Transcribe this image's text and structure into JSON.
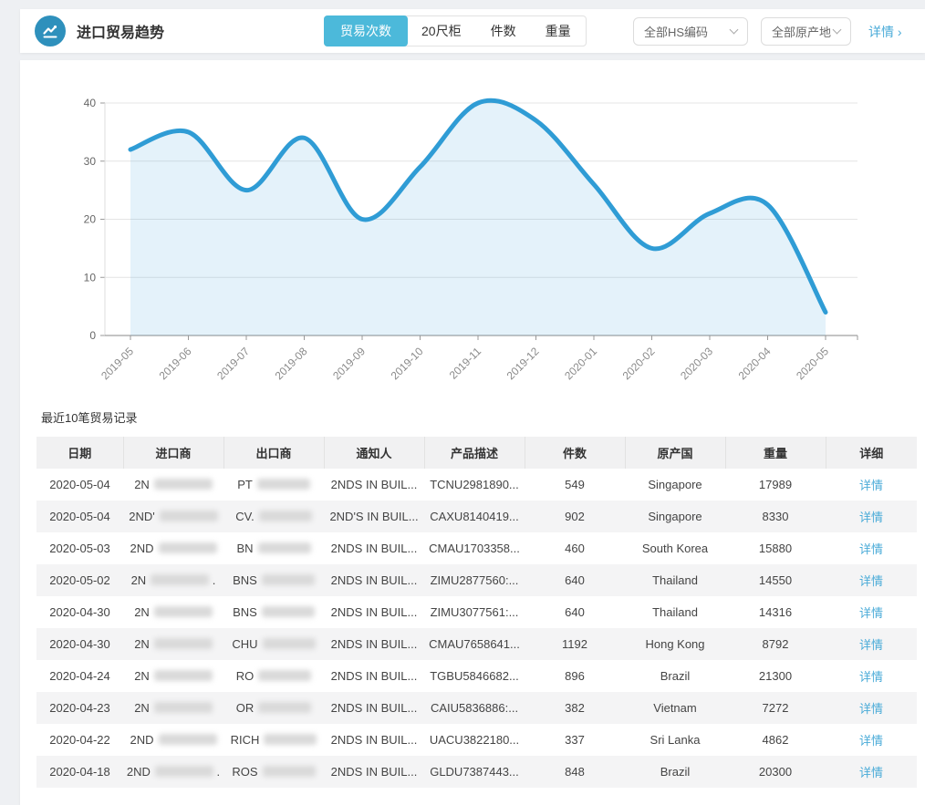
{
  "colors": {
    "accent": "#45b0d9",
    "tab_active_bg": "#4cb9da",
    "chart_line": "#2f9cd5",
    "chart_area": "rgba(47,156,213,0.13)",
    "icon_bg": "#2e90bc",
    "link": "#4aabd8"
  },
  "header": {
    "title": "进口贸易趋势",
    "tabs": [
      {
        "label": "贸易次数",
        "active": true
      },
      {
        "label": "20尺柜",
        "active": false
      },
      {
        "label": "件数",
        "active": false
      },
      {
        "label": "重量",
        "active": false
      }
    ],
    "filters": [
      {
        "label": "全部HS编码"
      },
      {
        "label": "全部原产地"
      }
    ],
    "detail_link": "详情 ›"
  },
  "chart_data": {
    "type": "area",
    "title": "",
    "xlabel": "",
    "ylabel": "",
    "x": [
      "2019-05",
      "2019-06",
      "2019-07",
      "2019-08",
      "2019-09",
      "2019-10",
      "2019-11",
      "2019-12",
      "2020-01",
      "2020-02",
      "2020-03",
      "2020-04",
      "2020-05"
    ],
    "series": [
      {
        "name": "贸易次数",
        "values": [
          32,
          35,
          25,
          34,
          20,
          29,
          40,
          37,
          26,
          15,
          21,
          22.5,
          4
        ]
      }
    ],
    "ylim": [
      0,
      40
    ],
    "yticks": [
      0,
      10,
      20,
      30,
      40
    ],
    "grid": true,
    "legend": false,
    "smooth": true,
    "x_label_rotation": -45
  },
  "table": {
    "title": "最近10笔贸易记录",
    "columns": [
      "日期",
      "进口商",
      "出口商",
      "通知人",
      "产品描述",
      "件数",
      "原产国",
      "重量",
      "详细"
    ],
    "detail_label": "详情",
    "rows": [
      {
        "date": "2020-05-04",
        "importer_prefix": "2N",
        "importer_suffix": "",
        "exporter_prefix": "PT",
        "notify": "2NDS IN BUIL...",
        "product": "TCNU2981890...",
        "pieces": "549",
        "country": "Singapore",
        "weight": "17989"
      },
      {
        "date": "2020-05-04",
        "importer_prefix": "2ND'",
        "importer_suffix": "",
        "exporter_prefix": "CV.",
        "notify": "2ND'S IN BUIL...",
        "product": "CAXU8140419...",
        "pieces": "902",
        "country": "Singapore",
        "weight": "8330"
      },
      {
        "date": "2020-05-03",
        "importer_prefix": "2ND",
        "importer_suffix": "",
        "exporter_prefix": "BN",
        "notify": "2NDS IN BUIL...",
        "product": "CMAU1703358...",
        "pieces": "460",
        "country": "South Korea",
        "weight": "15880"
      },
      {
        "date": "2020-05-02",
        "importer_prefix": "2N",
        "importer_suffix": ".",
        "exporter_prefix": "BNS",
        "notify": "2NDS IN BUIL...",
        "product": "ZIMU2877560:...",
        "pieces": "640",
        "country": "Thailand",
        "weight": "14550"
      },
      {
        "date": "2020-04-30",
        "importer_prefix": "2N",
        "importer_suffix": "",
        "exporter_prefix": "BNS",
        "notify": "2NDS IN BUIL...",
        "product": "ZIMU3077561:...",
        "pieces": "640",
        "country": "Thailand",
        "weight": "14316"
      },
      {
        "date": "2020-04-30",
        "importer_prefix": "2N",
        "importer_suffix": "",
        "exporter_prefix": "CHU",
        "notify": "2NDS IN BUIL...",
        "product": "CMAU7658641...",
        "pieces": "1192",
        "country": "Hong Kong",
        "weight": "8792"
      },
      {
        "date": "2020-04-24",
        "importer_prefix": "2N",
        "importer_suffix": "",
        "exporter_prefix": "RO",
        "notify": "2NDS IN BUIL...",
        "product": "TGBU5846682...",
        "pieces": "896",
        "country": "Brazil",
        "weight": "21300"
      },
      {
        "date": "2020-04-23",
        "importer_prefix": "2N",
        "importer_suffix": "",
        "exporter_prefix": "OR",
        "notify": "2NDS IN BUIL...",
        "product": "CAIU5836886:...",
        "pieces": "382",
        "country": "Vietnam",
        "weight": "7272"
      },
      {
        "date": "2020-04-22",
        "importer_prefix": "2ND",
        "importer_suffix": "",
        "exporter_prefix": "RICH",
        "notify": "2NDS IN BUIL...",
        "product": "UACU3822180...",
        "pieces": "337",
        "country": "Sri Lanka",
        "weight": "4862"
      },
      {
        "date": "2020-04-18",
        "importer_prefix": "2ND",
        "importer_suffix": ".",
        "exporter_prefix": "ROS",
        "notify": "2NDS IN BUIL...",
        "product": "GLDU7387443...",
        "pieces": "848",
        "country": "Brazil",
        "weight": "20300"
      }
    ]
  }
}
